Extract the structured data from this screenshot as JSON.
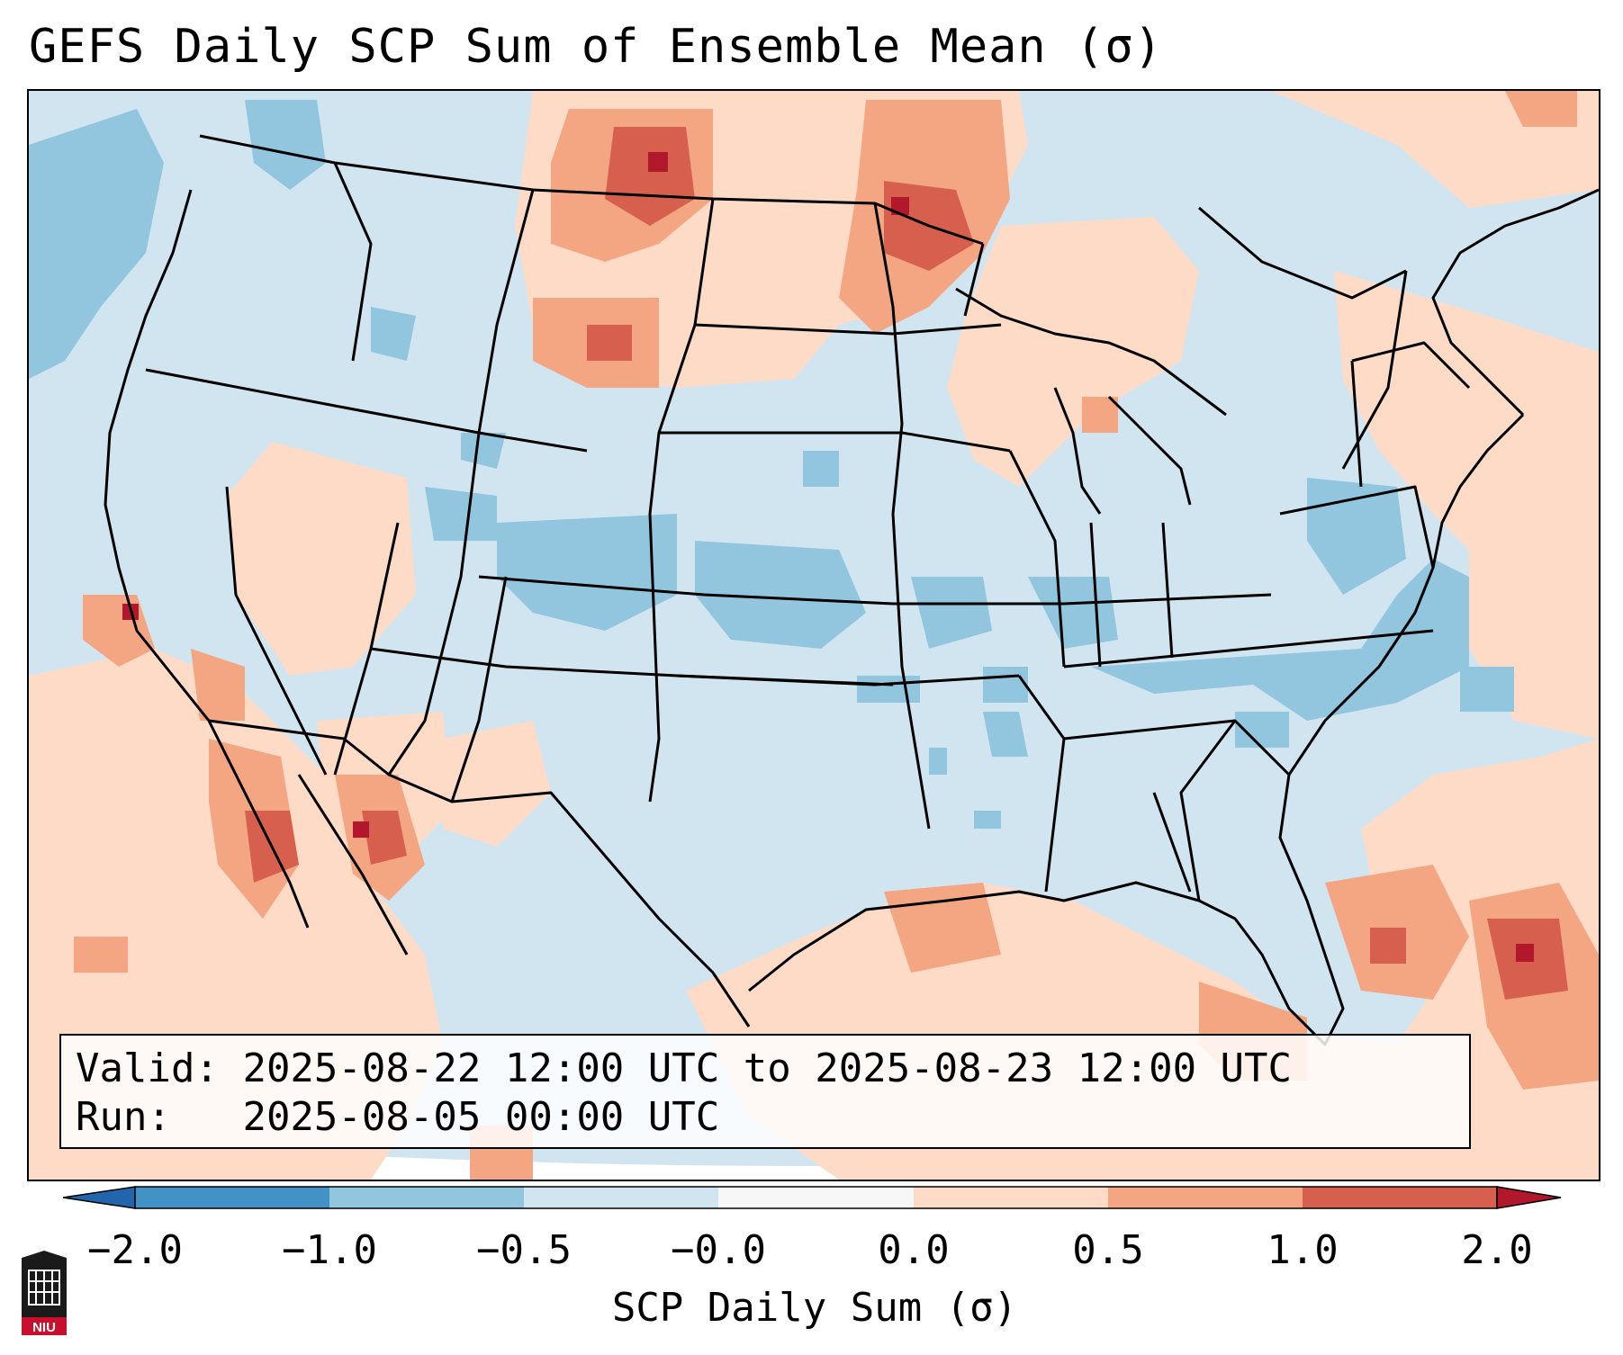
{
  "title": "GEFS Daily SCP Sum of Ensemble Mean (σ)",
  "info": {
    "valid_label": "Valid:",
    "valid_value": "2025-08-22 12:00 UTC to 2025-08-23 12:00 UTC",
    "run_label": "Run:",
    "run_value": "2025-08-05 00:00 UTC"
  },
  "colorbar": {
    "label": "SCP Daily Sum (σ)",
    "ticks": [
      "−2.0",
      "−1.0",
      "−0.5",
      "−0.0",
      "0.0",
      "0.5",
      "1.0",
      "2.0"
    ],
    "bin_colors": [
      "#4292c6",
      "#92c5de",
      "#d1e5f0",
      "#f7f7f7",
      "#fddbc7",
      "#f4a582",
      "#d6604d",
      "#b2182b"
    ],
    "under_color": "#2166ac",
    "over_color": "#b2182b"
  },
  "logo": {
    "text": "NIU"
  },
  "colors": {
    "near_zero_negative": "#d1e5f0",
    "near_zero_positive": "#fddbc7",
    "moderate_negative": "#92c5de",
    "moderate_positive": "#f4a582",
    "strong_positive": "#d6604d",
    "extreme_positive": "#b2182b",
    "boundary": "#000000"
  }
}
